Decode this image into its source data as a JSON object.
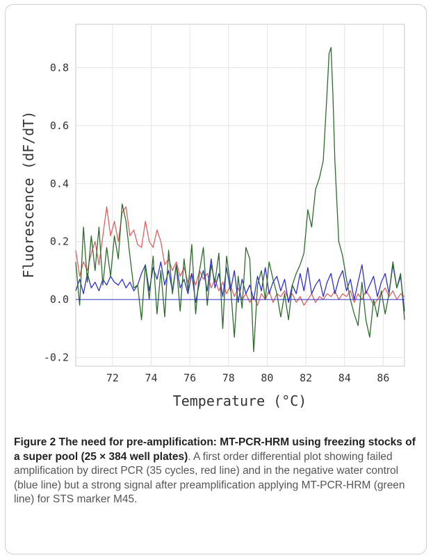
{
  "chart_data": {
    "type": "line",
    "title": "",
    "xlabel": "Temperature (°C)",
    "ylabel": "Fluorescence (dF/dT)",
    "xlim": [
      70.1,
      87.1
    ],
    "ylim": [
      -0.23,
      0.95
    ],
    "x_ticks": [
      72,
      74,
      76,
      78,
      80,
      82,
      84,
      86
    ],
    "y_ticks": [
      -0.2,
      0.0,
      0.2,
      0.4,
      0.6,
      0.8
    ],
    "x_tick_labels": [
      "72",
      "74",
      "76",
      "78",
      "80",
      "82",
      "84",
      "86"
    ],
    "y_tick_labels": [
      "-0.2",
      "0.0",
      "0.2",
      "0.4",
      "0.6",
      "0.8"
    ],
    "grid": true,
    "baseline": 0.0,
    "series": [
      {
        "color": "#e06060",
        "x": [
          70.1,
          70.3,
          70.5,
          70.7,
          70.9,
          71.1,
          71.3,
          71.5,
          71.7,
          71.9,
          72.1,
          72.3,
          72.5,
          72.7,
          72.9,
          73.1,
          73.3,
          73.5,
          73.7,
          73.9,
          74.1,
          74.3,
          74.5,
          74.7,
          74.9,
          75.1,
          75.3,
          75.5,
          75.7,
          75.9,
          76.1,
          76.3,
          76.5,
          76.7,
          76.9,
          77.1,
          77.3,
          77.5,
          77.7,
          77.9,
          78.1,
          78.3,
          78.5,
          78.7,
          78.9,
          79.1,
          79.3,
          79.5,
          79.7,
          79.9,
          80.1,
          80.3,
          80.5,
          80.7,
          80.9,
          81.1,
          81.3,
          81.5,
          81.7,
          81.9,
          82.1,
          82.3,
          82.5,
          82.7,
          82.9,
          83.1,
          83.3,
          83.5,
          83.7,
          83.9,
          84.1,
          84.3,
          84.5,
          84.7,
          84.9,
          85.1,
          85.3,
          85.5,
          85.7,
          85.9,
          86.1,
          86.3,
          86.5,
          86.7,
          86.9,
          87.1
        ],
        "y": [
          0.17,
          0.08,
          0.13,
          0.1,
          0.16,
          0.2,
          0.12,
          0.22,
          0.32,
          0.22,
          0.27,
          0.2,
          0.3,
          0.32,
          0.22,
          0.24,
          0.19,
          0.18,
          0.27,
          0.2,
          0.18,
          0.24,
          0.2,
          0.12,
          0.14,
          0.1,
          0.13,
          0.08,
          0.11,
          0.06,
          0.09,
          0.05,
          0.1,
          0.07,
          0.09,
          0.04,
          0.07,
          0.03,
          0.06,
          0.02,
          0.05,
          0.01,
          0.04,
          0.0,
          0.02,
          -0.01,
          0.01,
          -0.02,
          0.02,
          0.0,
          0.03,
          -0.01,
          0.02,
          0.01,
          0.03,
          0.0,
          0.02,
          -0.01,
          0.01,
          -0.02,
          0.0,
          0.02,
          -0.01,
          0.01,
          0.0,
          0.02,
          0.01,
          0.03,
          0.0,
          0.02,
          0.01,
          0.03,
          -0.01,
          0.02,
          0.0,
          0.03,
          0.01,
          -0.02,
          0.0,
          0.02,
          0.04,
          0.01,
          0.03,
          0.0,
          0.02,
          0.01
        ]
      },
      {
        "color": "#3030cc",
        "x": [
          70.1,
          70.3,
          70.5,
          70.7,
          70.9,
          71.1,
          71.3,
          71.5,
          71.7,
          71.9,
          72.1,
          72.3,
          72.5,
          72.7,
          72.9,
          73.1,
          73.3,
          73.5,
          73.7,
          73.9,
          74.1,
          74.3,
          74.5,
          74.7,
          74.9,
          75.1,
          75.3,
          75.5,
          75.7,
          75.9,
          76.1,
          76.3,
          76.5,
          76.7,
          76.9,
          77.1,
          77.3,
          77.5,
          77.7,
          77.9,
          78.1,
          78.3,
          78.5,
          78.7,
          78.9,
          79.1,
          79.3,
          79.5,
          79.7,
          79.9,
          80.1,
          80.3,
          80.5,
          80.7,
          80.9,
          81.1,
          81.3,
          81.5,
          81.7,
          81.9,
          82.1,
          82.3,
          82.5,
          82.7,
          82.9,
          83.1,
          83.3,
          83.5,
          83.7,
          83.9,
          84.1,
          84.3,
          84.5,
          84.7,
          84.9,
          85.1,
          85.3,
          85.5,
          85.7,
          85.9,
          86.1,
          86.3,
          86.5,
          86.7,
          86.9,
          87.1
        ],
        "y": [
          0.03,
          0.07,
          0.02,
          0.09,
          0.04,
          0.06,
          0.03,
          0.07,
          0.05,
          0.08,
          0.06,
          0.05,
          0.07,
          0.04,
          0.06,
          0.03,
          0.05,
          0.09,
          0.12,
          0.03,
          0.11,
          0.07,
          0.13,
          0.05,
          0.1,
          0.03,
          0.12,
          0.04,
          0.07,
          0.02,
          0.09,
          -0.01,
          0.06,
          0.1,
          0.03,
          0.14,
          0.04,
          0.09,
          0.01,
          0.11,
          0.03,
          0.1,
          -0.01,
          0.07,
          0.02,
          0.05,
          0.0,
          0.08,
          0.03,
          0.11,
          0.02,
          0.06,
          0.08,
          0.03,
          0.07,
          -0.01,
          0.05,
          0.02,
          0.09,
          0.03,
          0.11,
          0.02,
          0.05,
          0.07,
          0.01,
          0.06,
          0.09,
          0.02,
          0.07,
          0.1,
          0.03,
          0.07,
          0.0,
          0.06,
          0.12,
          0.02,
          0.05,
          0.08,
          0.01,
          0.06,
          0.09,
          0.02,
          0.12,
          0.04,
          0.08,
          -0.04
        ]
      },
      {
        "color": "#2d6b2d",
        "x": [
          70.1,
          70.3,
          70.5,
          70.7,
          70.9,
          71.1,
          71.3,
          71.5,
          71.7,
          71.9,
          72.1,
          72.3,
          72.5,
          72.7,
          72.9,
          73.1,
          73.3,
          73.5,
          73.7,
          73.9,
          74.1,
          74.3,
          74.5,
          74.7,
          74.9,
          75.1,
          75.3,
          75.5,
          75.7,
          75.9,
          76.1,
          76.3,
          76.5,
          76.7,
          76.9,
          77.1,
          77.3,
          77.5,
          77.7,
          77.9,
          78.1,
          78.3,
          78.5,
          78.7,
          78.9,
          79.1,
          79.3,
          79.5,
          79.7,
          79.9,
          80.1,
          80.3,
          80.5,
          80.7,
          80.9,
          81.1,
          81.3,
          81.5,
          81.7,
          81.9,
          82.1,
          82.3,
          82.5,
          82.7,
          82.9,
          83.0,
          83.1,
          83.2,
          83.3,
          83.4,
          83.5,
          83.7,
          83.9,
          84.1,
          84.3,
          84.5,
          84.7,
          84.9,
          85.1,
          85.3,
          85.5,
          85.7,
          85.9,
          86.1,
          86.3,
          86.5,
          86.7,
          86.9,
          87.1
        ],
        "y": [
          0.13,
          -0.02,
          0.25,
          0.06,
          0.22,
          0.1,
          0.25,
          0.05,
          0.18,
          0.08,
          0.22,
          0.14,
          0.33,
          0.27,
          0.15,
          0.04,
          0.05,
          -0.07,
          0.12,
          0.0,
          0.15,
          -0.05,
          0.1,
          -0.06,
          0.17,
          0.02,
          0.12,
          -0.04,
          0.14,
          0.03,
          0.19,
          -0.05,
          0.1,
          0.18,
          -0.02,
          0.12,
          0.06,
          0.16,
          -0.1,
          0.15,
          0.05,
          -0.13,
          0.08,
          -0.03,
          0.18,
          0.14,
          -0.18,
          0.05,
          0.1,
          0.0,
          0.13,
          0.07,
          0.02,
          -0.06,
          0.02,
          -0.07,
          0.05,
          0.09,
          0.12,
          0.16,
          0.31,
          0.25,
          0.38,
          0.42,
          0.48,
          0.6,
          0.72,
          0.85,
          0.87,
          0.7,
          0.48,
          0.2,
          0.15,
          0.07,
          0.0,
          -0.05,
          -0.09,
          0.06,
          -0.07,
          -0.13,
          0.0,
          -0.06,
          0.03,
          -0.05,
          0.02,
          0.13,
          0.04,
          0.09,
          -0.07
        ]
      }
    ]
  },
  "caption": {
    "bold": "Figure 2 The need for pre-amplification: MT-PCR-HRM using freezing stocks of a super pool (25 × 384 well plates)",
    "text": ". A first order differential plot showing failed amplification by direct PCR (35 cycles, red line) and in the negative water control (blue line) but a strong signal after preamplification applying MT-PCR-HRM (green line) for STS marker M45."
  }
}
